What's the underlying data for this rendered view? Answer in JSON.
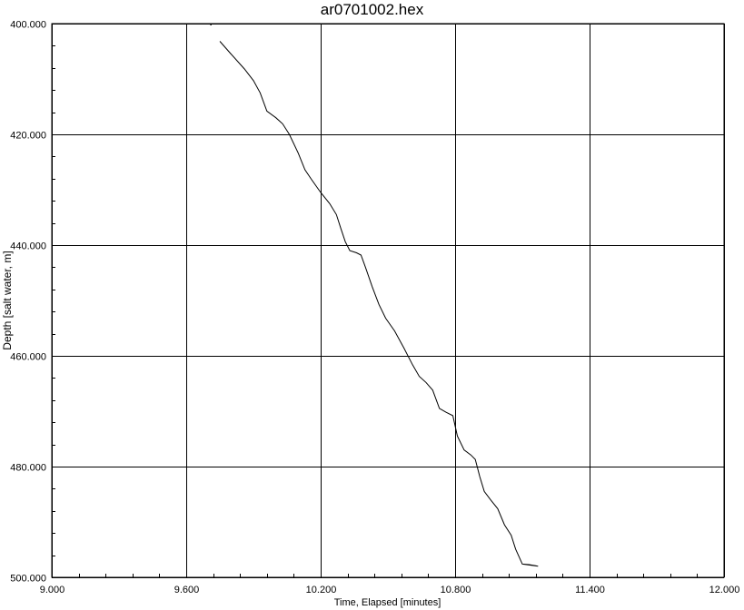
{
  "chart_data": {
    "type": "line",
    "title": "ar0701002.hex",
    "xlabel": "Time, Elapsed [minutes]",
    "ylabel": "Depth [salt water, m]",
    "xlim": [
      9.0,
      12.0
    ],
    "ylim": [
      400.0,
      500.0
    ],
    "y_inverted": true,
    "grid": true,
    "x_ticks": [
      "9.000",
      "9.600",
      "10.200",
      "10.800",
      "11.400",
      "12.000"
    ],
    "y_ticks": [
      "400.000",
      "420.000",
      "440.000",
      "460.000",
      "480.000",
      "500.000"
    ],
    "series": [
      {
        "color": "#000000",
        "x": [
          9.71,
          9.75,
          9.8,
          9.86,
          9.9,
          9.93,
          9.96,
          10.0,
          10.03,
          10.06,
          10.1,
          10.13,
          10.16,
          10.2,
          10.24,
          10.27,
          10.29,
          10.31,
          10.33,
          10.36,
          10.38,
          10.4,
          10.43,
          10.46,
          10.49,
          10.53,
          10.57,
          10.61,
          10.64,
          10.67,
          10.7,
          10.73,
          10.76,
          10.79,
          10.81,
          10.84,
          10.87,
          10.89,
          10.91,
          10.93,
          10.96,
          10.99,
          11.02,
          11.05,
          11.07,
          11.1,
          11.13,
          11.16,
          11.17,
          11.19,
          11.21,
          11.23,
          11.26,
          11.29,
          11.32
        ],
        "y": [
          400.2,
          403.2,
          405.5,
          408.2,
          410.3,
          412.5,
          415.8,
          417.0,
          418.1,
          420.0,
          423.4,
          426.4,
          428.2,
          430.5,
          432.5,
          434.5,
          437.0,
          439.4,
          441.0,
          441.4,
          441.8,
          444.0,
          447.5,
          450.7,
          453.2,
          455.5,
          458.5,
          461.6,
          463.7,
          464.8,
          466.2,
          469.5,
          470.2,
          470.8,
          474.5,
          477.0,
          477.9,
          478.7,
          481.8,
          484.5,
          486.1,
          487.6,
          490.5,
          492.4,
          494.9,
          497.6,
          497.7,
          497.9,
          498.0,
          498.1,
          498.2,
          498.3,
          498.3,
          498.3,
          498.3
        ]
      }
    ]
  }
}
